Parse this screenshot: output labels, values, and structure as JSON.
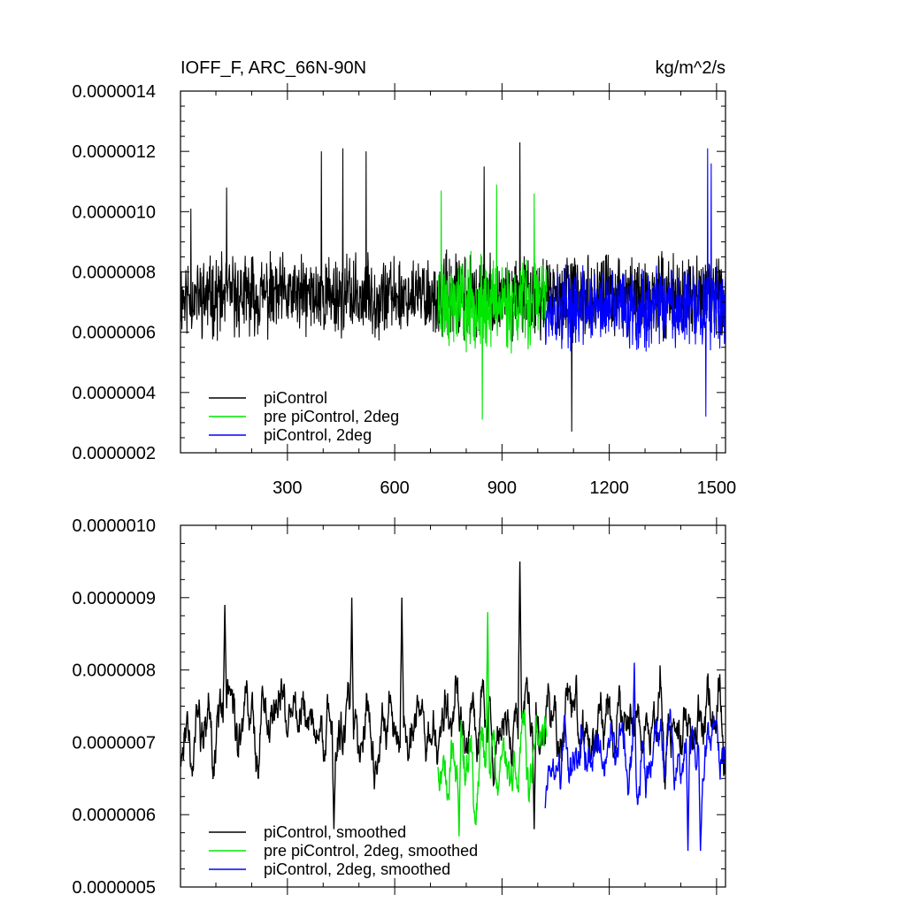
{
  "chart_data": [
    {
      "type": "line",
      "title": "IOFF_F, ARC_66N-90N",
      "units": "kg/m^2/s",
      "xlabel": "",
      "ylabel": "",
      "xlim": [
        1,
        1525
      ],
      "ylim": [
        2e-07,
        1.4e-06
      ],
      "x_ticks": [
        300,
        600,
        900,
        1200,
        1500
      ],
      "x_tick_labels": [
        "300",
        "600",
        "900",
        "1200",
        "1500"
      ],
      "y_ticks": [
        2e-07,
        4e-07,
        6e-07,
        8e-07,
        1e-06,
        1.2e-06,
        1.4e-06
      ],
      "y_tick_labels": [
        "0.0000002",
        "0.0000004",
        "0.0000006",
        "0.0000008",
        "0.0000010",
        "0.0000012",
        "0.0000014"
      ],
      "legend_position": "bottom-left",
      "grid": false,
      "series": [
        {
          "name": "piControl",
          "color": "#000000",
          "x_range": [
            1,
            1525
          ],
          "mean": 7.2e-07,
          "spread": 1.3e-07,
          "smoothed": false,
          "seed": 11,
          "peaks": [
            [
              30,
              1.01e-06
            ],
            [
              130,
              1.08e-06
            ],
            [
              395,
              1.2e-06
            ],
            [
              455,
              1.21e-06
            ],
            [
              520,
              1.2e-06
            ],
            [
              850,
              1.15e-06
            ],
            [
              950,
              1.23e-06
            ],
            [
              1095,
              2.7e-07
            ]
          ]
        },
        {
          "name": "pre piControl, 2deg",
          "color": "#00e600",
          "x_range": [
            721,
            1025
          ],
          "mean": 7e-07,
          "spread": 1.5e-07,
          "smoothed": false,
          "seed": 23,
          "peaks": [
            [
              730,
              1.07e-06
            ],
            [
              885,
              1.09e-06
            ],
            [
              990,
              1.06e-06
            ],
            [
              845,
              3.1e-07
            ]
          ]
        },
        {
          "name": "piControl, 2deg",
          "color": "#0000ff",
          "x_range": [
            1021,
            1525
          ],
          "mean": 6.8e-07,
          "spread": 1.3e-07,
          "smoothed": false,
          "seed": 37,
          "peaks": [
            [
              1475,
              1.21e-06
            ],
            [
              1485,
              1.16e-06
            ],
            [
              1470,
              3.2e-07
            ]
          ]
        }
      ]
    },
    {
      "type": "line",
      "title": "",
      "xlabel": "",
      "ylabel": "",
      "xlim": [
        1,
        1525
      ],
      "ylim": [
        5e-07,
        1e-06
      ],
      "x_ticks": [
        300,
        600,
        900,
        1200,
        1500
      ],
      "x_tick_labels": [
        "",
        "",
        "",
        "",
        ""
      ],
      "y_ticks": [
        5e-07,
        6e-07,
        7e-07,
        8e-07,
        9e-07,
        1e-06
      ],
      "y_tick_labels": [
        "0.0000005",
        "0.0000006",
        "0.0000007",
        "0.0000008",
        "0.0000009",
        "0.0000010"
      ],
      "legend_position": "bottom-left",
      "grid": false,
      "series": [
        {
          "name": "piControl, smoothed",
          "color": "#000000",
          "x_range": [
            1,
            1525
          ],
          "mean": 7.2e-07,
          "spread": 6e-08,
          "smoothed": true,
          "seed": 11,
          "peaks": [
            [
              125,
              8.9e-07
            ],
            [
              480,
              9e-07
            ],
            [
              620,
              9e-07
            ],
            [
              950,
              9.5e-07
            ],
            [
              430,
              5.8e-07
            ],
            [
              990,
              5.8e-07
            ]
          ]
        },
        {
          "name": "pre piControl, 2deg, smoothed",
          "color": "#00e600",
          "x_range": [
            721,
            1025
          ],
          "mean": 6.8e-07,
          "spread": 6e-08,
          "smoothed": true,
          "seed": 23,
          "peaks": [
            [
              860,
              8.8e-07
            ],
            [
              780,
              5.7e-07
            ]
          ]
        },
        {
          "name": "piControl, 2deg, smoothed",
          "color": "#0000ff",
          "x_range": [
            1021,
            1525
          ],
          "mean": 6.8e-07,
          "spread": 5e-08,
          "smoothed": true,
          "seed": 37,
          "peaks": [
            [
              1270,
              8.1e-07
            ],
            [
              1420,
              5.5e-07
            ],
            [
              1455,
              5.5e-07
            ]
          ]
        }
      ]
    }
  ]
}
